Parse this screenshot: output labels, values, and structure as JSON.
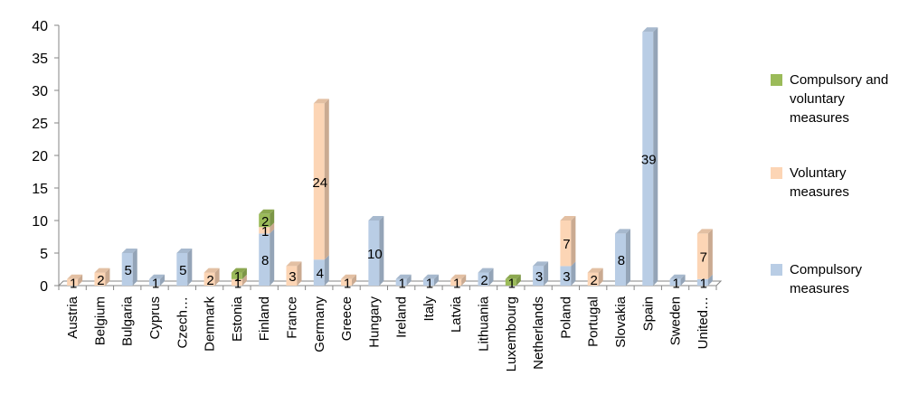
{
  "chart_data": {
    "type": "bar",
    "stacked": true,
    "categories": [
      "Austria",
      "Belgium",
      "Bulgaria",
      "Cyprus",
      "Czech…",
      "Denmark",
      "Estonia",
      "Finland",
      "France",
      "Germany",
      "Greece",
      "Hungary",
      "Ireland",
      "Italy",
      "Latvia",
      "Lithuania",
      "Luxembourg",
      "Netherlands",
      "Poland",
      "Portugal",
      "Slovakia",
      "Spain",
      "Sweden",
      "United…"
    ],
    "series": [
      {
        "name": "Compulsory measures",
        "color": "#b9cde5",
        "values": [
          0,
          0,
          5,
          1,
          5,
          0,
          0,
          8,
          0,
          4,
          0,
          10,
          1,
          1,
          0,
          2,
          0,
          3,
          3,
          0,
          8,
          39,
          1,
          1
        ]
      },
      {
        "name": "Voluntary measures",
        "color": "#fcd5b5",
        "values": [
          1,
          2,
          0,
          0,
          0,
          2,
          1,
          1,
          3,
          24,
          1,
          0,
          0,
          0,
          1,
          0,
          0,
          0,
          7,
          2,
          0,
          0,
          0,
          7
        ]
      },
      {
        "name": "Compulsory and voluntary measures",
        "color": "#9bbb59",
        "values": [
          0,
          0,
          0,
          0,
          0,
          0,
          1,
          2,
          0,
          0,
          0,
          0,
          0,
          0,
          0,
          0,
          1,
          0,
          0,
          0,
          0,
          0,
          0,
          0
        ]
      }
    ],
    "data_labels": {
      "Compulsory measures": [
        null,
        null,
        "5",
        "1",
        "5",
        null,
        null,
        "8",
        null,
        "4",
        null,
        "10",
        "1",
        "1",
        null,
        "2",
        null,
        "3",
        "3",
        null,
        "8",
        "39",
        "1",
        "1"
      ],
      "Voluntary measures": [
        "1",
        "2",
        null,
        null,
        null,
        "2",
        "1",
        "1",
        "3",
        "24",
        "1",
        null,
        null,
        null,
        "1",
        null,
        null,
        null,
        "7",
        "2",
        null,
        null,
        null,
        "7"
      ],
      "Compulsory and voluntary measures": [
        null,
        null,
        null,
        null,
        null,
        null,
        "1",
        "2",
        null,
        null,
        null,
        null,
        null,
        null,
        null,
        null,
        "1",
        null,
        null,
        null,
        null,
        null,
        null,
        null
      ]
    },
    "yticks": [
      "0",
      "5",
      "10",
      "15",
      "20",
      "25",
      "30",
      "35",
      "40"
    ],
    "ylim": [
      0,
      40
    ],
    "legend_position": "right",
    "grid": false
  },
  "legend": [
    {
      "label": "Compulsory and voluntary measures",
      "color": "#9bbb59"
    },
    {
      "label": "Voluntary measures",
      "color": "#fcd5b5"
    },
    {
      "label": "Compulsory measures",
      "color": "#b9cde5"
    }
  ]
}
